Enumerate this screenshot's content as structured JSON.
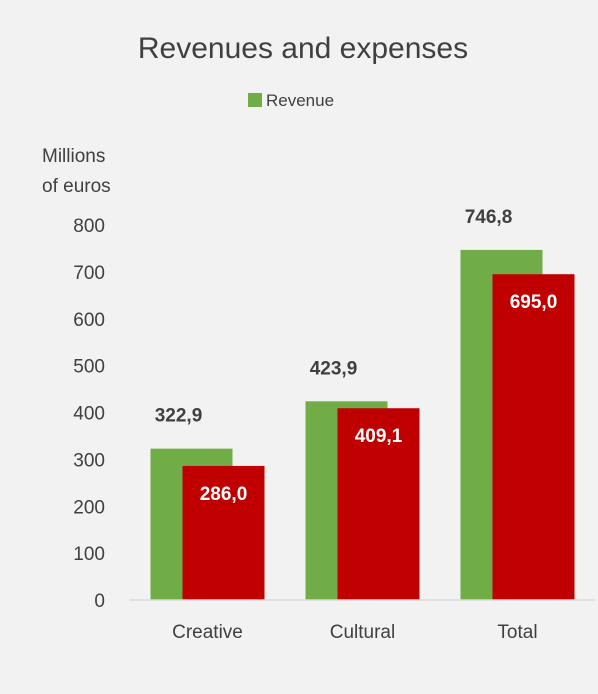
{
  "chart_data": {
    "type": "bar",
    "title": "Revenues and expenses",
    "ylabel": [
      "Millions",
      "of euros"
    ],
    "categories": [
      "Creative",
      "Cultural",
      "Total"
    ],
    "series": [
      {
        "name": "Revenue",
        "values": [
          322.9,
          423.9,
          746.8
        ],
        "labels": [
          "322,9",
          "423,9",
          "746,8"
        ],
        "color": "#70ad47"
      },
      {
        "values": [
          286.0,
          409.1,
          695.0
        ],
        "labels": [
          "286,0",
          "409,1",
          "695,0"
        ],
        "color": "#c00000"
      }
    ],
    "ylim": [
      0,
      800
    ],
    "yticks": [
      0,
      100,
      200,
      300,
      400,
      500,
      600,
      700,
      800
    ],
    "grid": false,
    "legend_position": "top"
  }
}
